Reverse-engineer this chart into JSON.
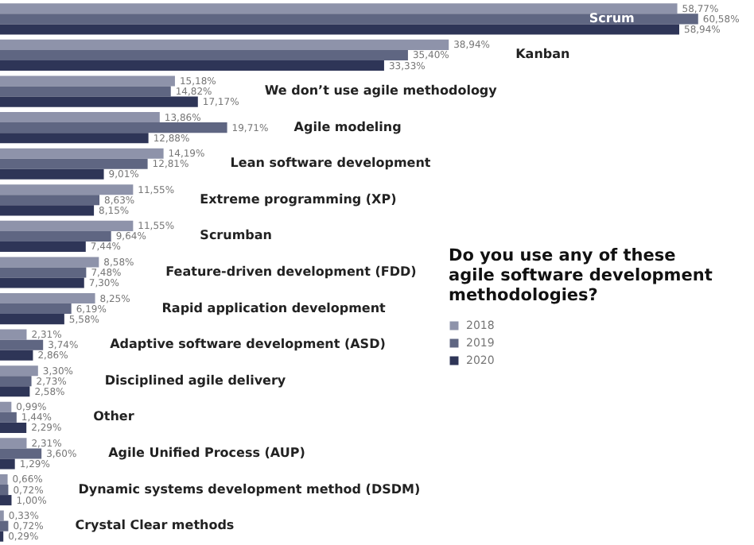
{
  "chart_data": {
    "type": "bar",
    "orientation": "horizontal",
    "title": "Do you use any of these agile software development methodologies?",
    "legend": "right",
    "categories": [
      "Scrum",
      "Kanban",
      "We don’t use agile methodology",
      "Agile modeling",
      "Lean software development",
      "Extreme programming (XP)",
      "Scrumban",
      "Feature-driven development (FDD)",
      "Rapid application development",
      "Adaptive software development (ASD)",
      "Disciplined agile delivery",
      "Other",
      "Agile Unified Process (AUP)",
      "Dynamic systems development method (DSDM)",
      "Crystal Clear methods"
    ],
    "series": [
      {
        "name": "2018",
        "color": "#8e93aa",
        "values": [
          58.77,
          38.94,
          15.18,
          13.86,
          14.19,
          11.55,
          11.55,
          8.58,
          8.25,
          2.31,
          3.3,
          0.99,
          2.31,
          0.66,
          0.33
        ],
        "value_labels": [
          "58,77%",
          "38,94%",
          "15,18%",
          "13,86%",
          "14,19%",
          "11,55%",
          "11,55%",
          "8,58%",
          "8,25%",
          "2,31%",
          "3,30%",
          "0,99%",
          "2,31%",
          "0,66%",
          "0,33%"
        ]
      },
      {
        "name": "2019",
        "color": "#5f6682",
        "values": [
          60.58,
          35.4,
          14.82,
          19.71,
          12.81,
          8.63,
          9.64,
          7.48,
          6.19,
          3.74,
          2.73,
          1.44,
          3.6,
          0.72,
          0.72
        ],
        "value_labels": [
          "60,58%",
          "35,40%",
          "14,82%",
          "19,71%",
          "12,81%",
          "8,63%",
          "9,64%",
          "7,48%",
          "6,19%",
          "3,74%",
          "2,73%",
          "1,44%",
          "3,60%",
          "0,72%",
          "0,72%"
        ]
      },
      {
        "name": "2020",
        "color": "#2e3557",
        "values": [
          58.94,
          33.33,
          17.17,
          12.88,
          9.01,
          8.15,
          7.44,
          7.3,
          5.58,
          2.86,
          2.58,
          2.29,
          1.29,
          1.0,
          0.29
        ],
        "value_labels": [
          "58,94%",
          "33,33%",
          "17,17%",
          "12,88%",
          "9,01%",
          "8,15%",
          "7,44%",
          "7,30%",
          "5,58%",
          "2,86%",
          "2,58%",
          "2,29%",
          "1,29%",
          "1,00%",
          "0,29%"
        ]
      }
    ]
  }
}
